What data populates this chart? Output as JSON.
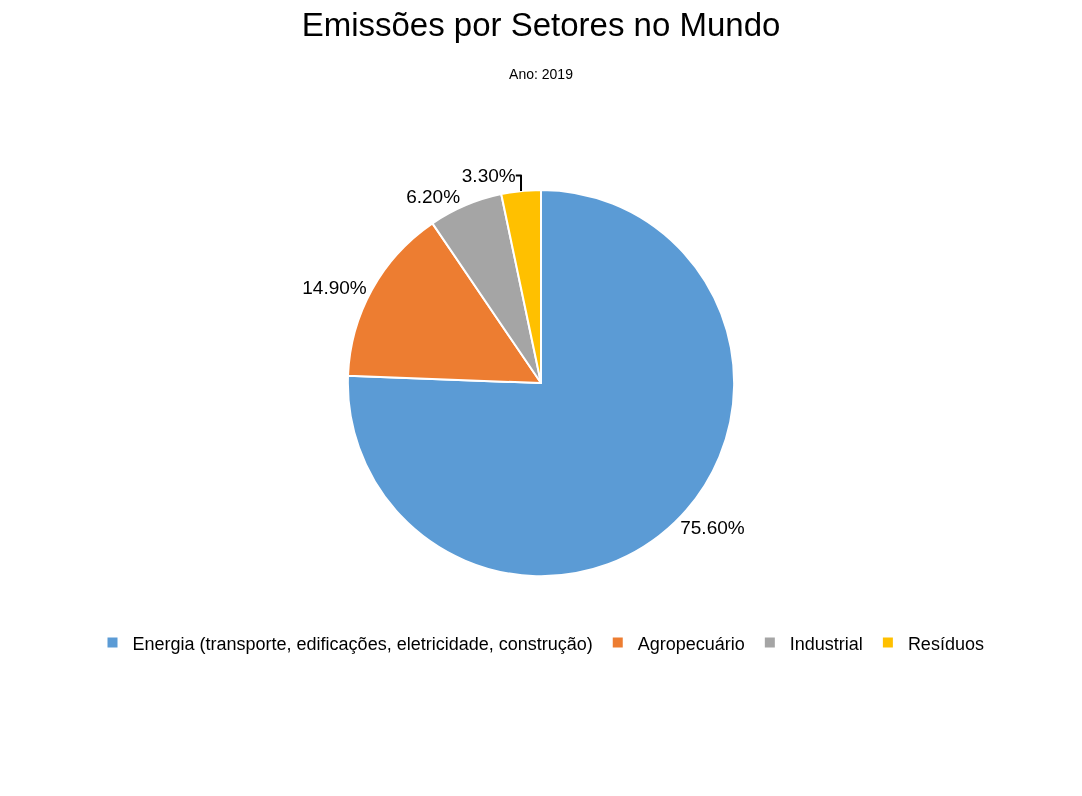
{
  "chart_data": {
    "type": "pie",
    "title": "Emissões por Setores no Mundo",
    "subtitle": "Ano: 2019",
    "categories": [
      "Energia (transporte, edificações, eletricidade, construção)",
      "Agropecuário",
      "Industrial",
      "Resíduos"
    ],
    "values": [
      75.6,
      14.9,
      6.2,
      3.3
    ],
    "value_labels": [
      "75.60%",
      "14.90%",
      "6.20%",
      "3.30%"
    ],
    "colors": [
      "#5b9bd5",
      "#ed7d31",
      "#a5a5a5",
      "#ffc000"
    ],
    "legend": "bottom"
  }
}
